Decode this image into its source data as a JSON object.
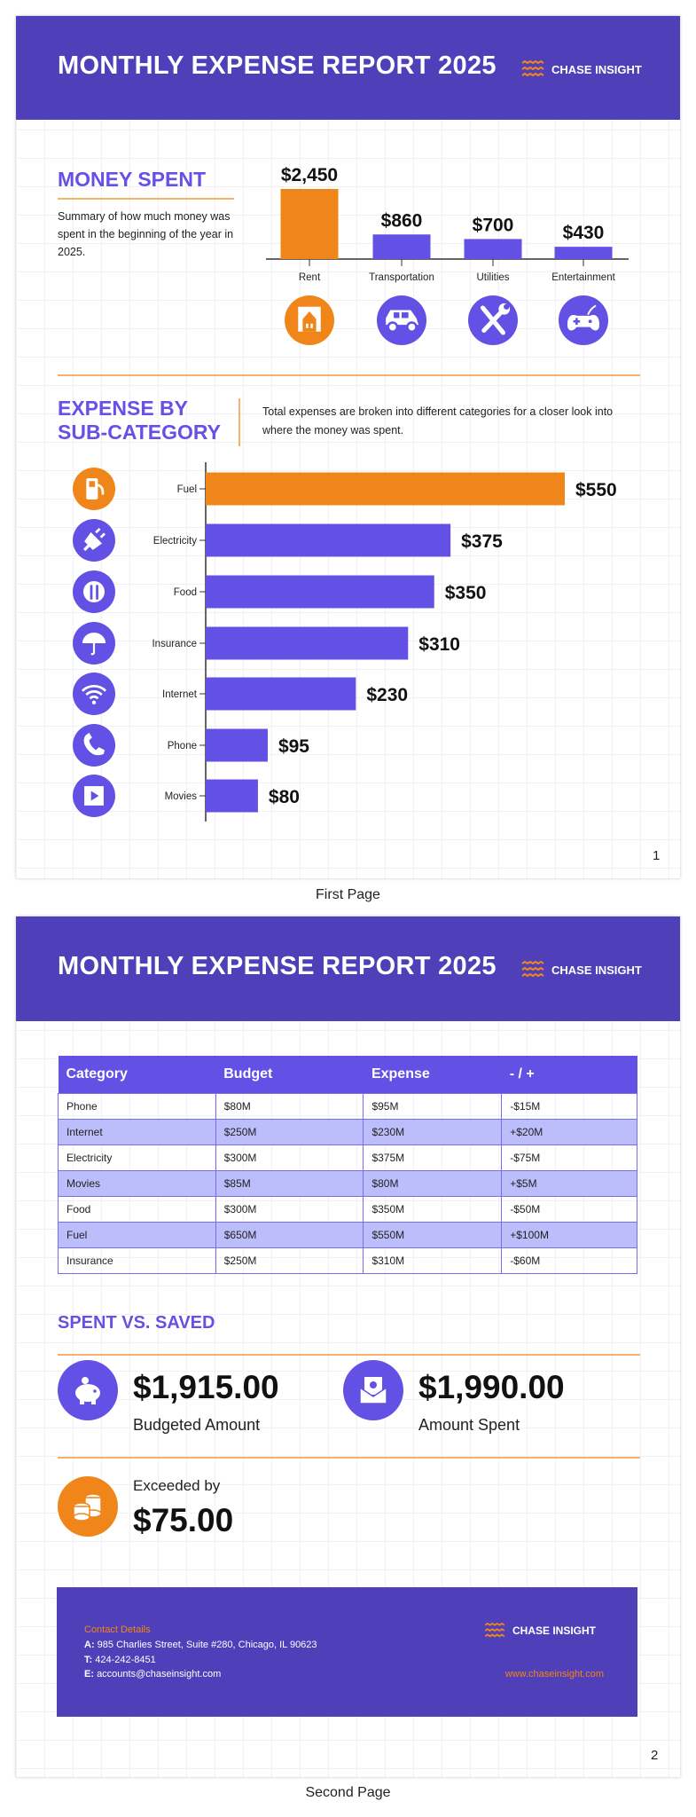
{
  "colors": {
    "header": "#4f3fb8",
    "accent_purple": "#6350e4",
    "accent_orange": "#f0861a",
    "row_alt": "#bcbdfb"
  },
  "report_title": "MONTHLY EXPENSE REPORT 2025",
  "logo_text": "CHASE INSIGHT",
  "page1": {
    "money_spent": {
      "heading": "MONEY SPENT",
      "summary": "Summary of how much money was spent in the beginning of the year in 2025."
    },
    "sub_category": {
      "heading_line1": "EXPENSE BY",
      "heading_line2": "SUB-CATEGORY",
      "description": "Total expenses are broken into different categories for a closer look into where the money was spent."
    },
    "page_number": "1",
    "caption": "First Page"
  },
  "chart_data": [
    {
      "type": "bar",
      "orientation": "vertical",
      "categories": [
        "Rent",
        "Transportation",
        "Utilities",
        "Entertainment"
      ],
      "values": [
        2450,
        860,
        700,
        430
      ],
      "data_labels": [
        "$2,450",
        "$860",
        "$700",
        "$430"
      ],
      "highlight": "Rent",
      "icons": [
        "house-icon",
        "car-icon",
        "tools-icon",
        "gamepad-icon"
      ]
    },
    {
      "type": "bar",
      "orientation": "horizontal",
      "categories": [
        "Fuel",
        "Electricity",
        "Food",
        "Insurance",
        "Internet",
        "Phone",
        "Movies"
      ],
      "values": [
        550,
        375,
        350,
        310,
        230,
        95,
        80
      ],
      "data_labels": [
        "$550",
        "$375",
        "$350",
        "$310",
        "$230",
        "$95",
        "$80"
      ],
      "highlight": "Fuel",
      "icons": [
        "fuel-pump-icon",
        "plug-icon",
        "utensils-icon",
        "umbrella-icon",
        "wifi-icon",
        "phone-icon",
        "film-icon"
      ]
    }
  ],
  "page2": {
    "table": {
      "headers": [
        "Category",
        "Budget",
        "Expense",
        "- / +"
      ],
      "rows": [
        [
          "Phone",
          "$80M",
          "$95M",
          "-$15M"
        ],
        [
          "Internet",
          "$250M",
          "$230M",
          "+$20M"
        ],
        [
          "Electricity",
          "$300M",
          "$375M",
          "-$75M"
        ],
        [
          "Movies",
          "$85M",
          "$80M",
          "+$5M"
        ],
        [
          "Food",
          "$300M",
          "$350M",
          "-$50M"
        ],
        [
          "Fuel",
          "$650M",
          "$550M",
          "+$100M"
        ],
        [
          "Insurance",
          "$250M",
          "$310M",
          "-$60M"
        ]
      ]
    },
    "spent_vs_saved": {
      "heading": "SPENT VS. SAVED",
      "budgeted_value": "$1,915.00",
      "budgeted_label": "Budgeted Amount",
      "spent_value": "$1,990.00",
      "spent_label": "Amount Spent",
      "exceeded_label": "Exceeded by",
      "exceeded_value": "$75.00"
    },
    "footer": {
      "contact_heading": "Contact Details",
      "address_prefix": "A:",
      "address": "985 Charlies Street, Suite #280, Chicago, IL 90623",
      "phone_prefix": "T:",
      "phone": "424-242-8451",
      "email_prefix": "E:",
      "email": "accounts@chaseinsight.com",
      "website": "www.chaseinsight.com"
    },
    "page_number": "2",
    "caption": "Second Page"
  }
}
